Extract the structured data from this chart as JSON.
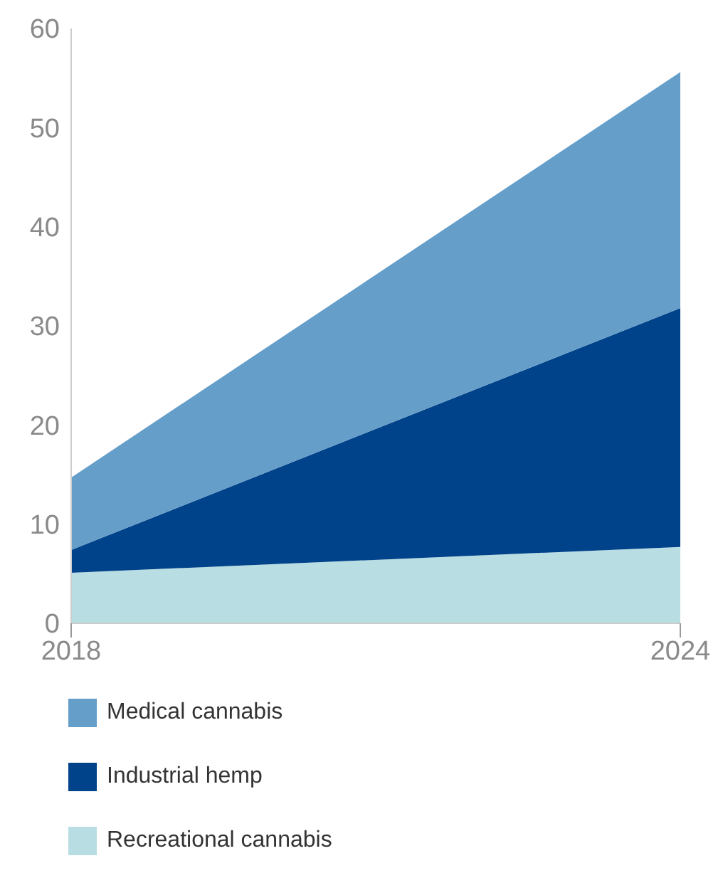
{
  "chart_data": {
    "type": "area",
    "stacked": true,
    "x": [
      2018,
      2024
    ],
    "xlim": [
      2018,
      2024
    ],
    "xticks": [
      2018,
      2024
    ],
    "ylim": [
      0,
      60
    ],
    "yticks": [
      0,
      10,
      20,
      30,
      40,
      50,
      60
    ],
    "grid": false,
    "legend": "bottom",
    "series": [
      {
        "name": "Recreational cannabis",
        "color": "#b8dde2",
        "values": [
          5.1,
          7.7
        ]
      },
      {
        "name": "Industrial hemp",
        "color": "#00438a",
        "values": [
          2.3,
          24.1
        ]
      },
      {
        "name": "Medical cannabis",
        "color": "#659ec9",
        "values": [
          7.3,
          23.8
        ]
      }
    ]
  }
}
